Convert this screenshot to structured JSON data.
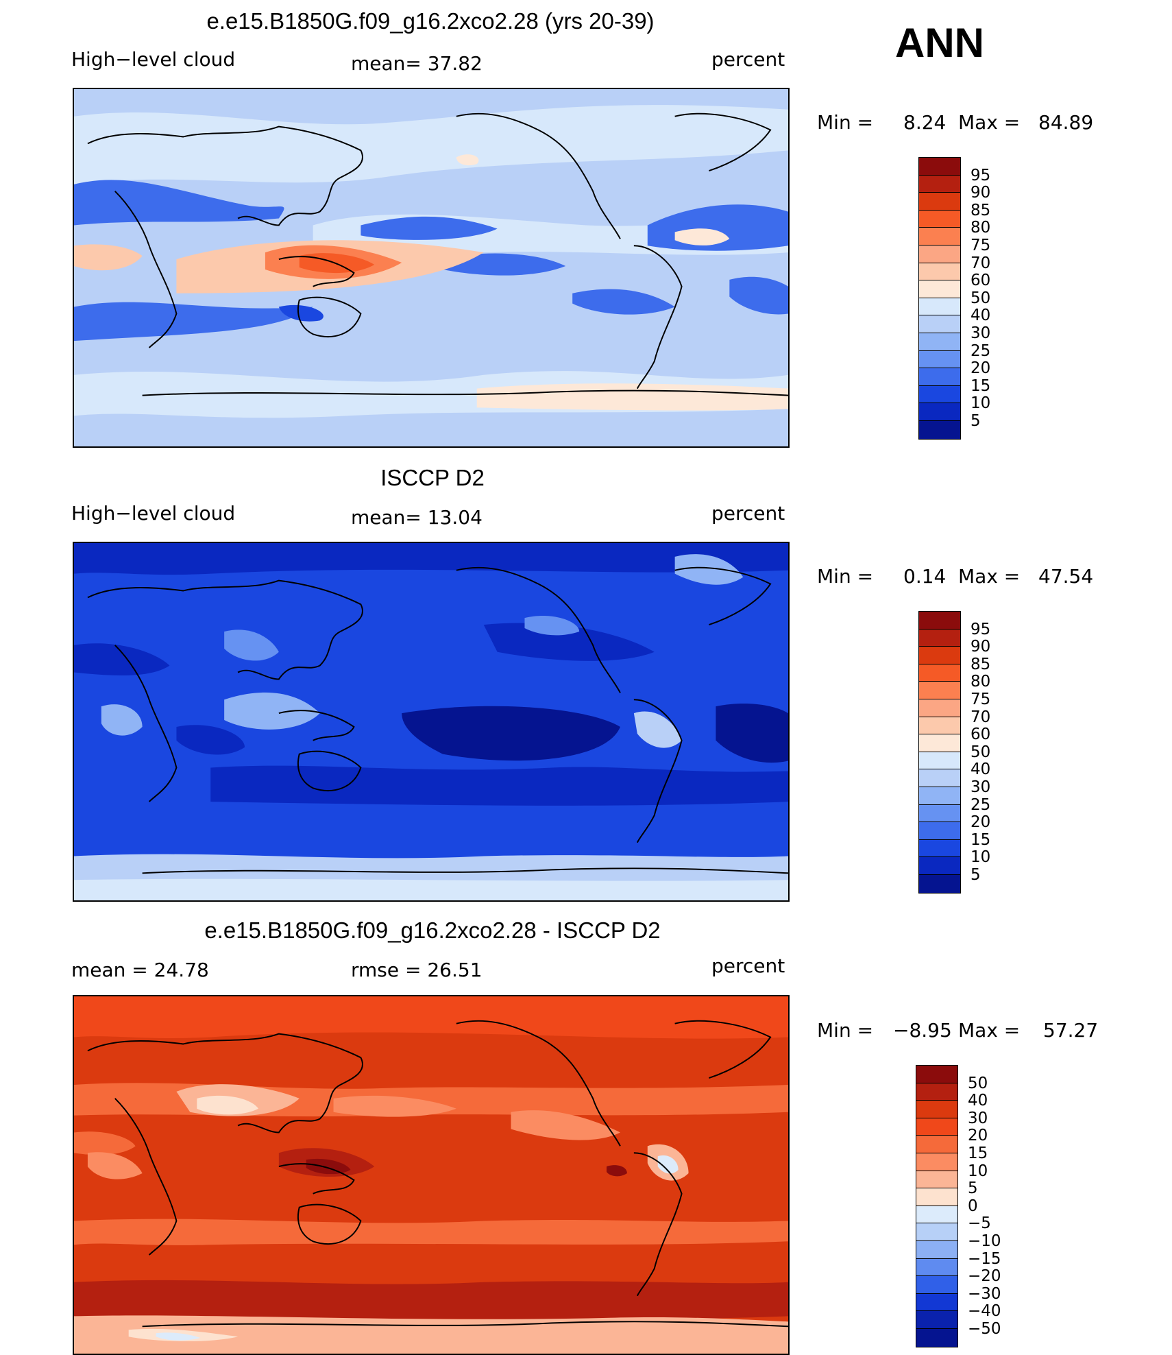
{
  "season": "ANN",
  "panels": [
    {
      "title": "e.e15.B1850G.f09_g16.2xco2.28 (yrs 20-39)",
      "left_label": "High−level cloud",
      "center_label": "mean=   37.82",
      "right_label": "percent",
      "min_label": "Min  =",
      "min_value": "8.24",
      "max_label": "Max  =",
      "max_value": "84.89",
      "field": {
        "base": "#b9d0f7",
        "mean": 37.82,
        "min": 8.24,
        "max": 84.89
      },
      "colorbar": {
        "labels": [
          "95",
          "90",
          "85",
          "80",
          "75",
          "70",
          "60",
          "50",
          "40",
          "30",
          "25",
          "20",
          "15",
          "10",
          "5"
        ],
        "colors": [
          "#8b0c0c",
          "#b42010",
          "#db3a0f",
          "#f55a26",
          "#fb8050",
          "#fba684",
          "#fcc9ac",
          "#fde8d8",
          "#d7e8fb",
          "#b9d0f7",
          "#90b4f5",
          "#6692f2",
          "#3d6cec",
          "#1a47e0",
          "#0a28c0",
          "#051490"
        ]
      }
    },
    {
      "title": "ISCCP D2",
      "left_label": "High−level cloud",
      "center_label": "mean=   13.04",
      "right_label": "percent",
      "min_label": "Min  =",
      "min_value": "0.14",
      "max_label": "Max  =",
      "max_value": "47.54",
      "field": {
        "base": "#1a47e0",
        "mean": 13.04,
        "min": 0.14,
        "max": 47.54
      },
      "colorbar": {
        "labels": [
          "95",
          "90",
          "85",
          "80",
          "75",
          "70",
          "60",
          "50",
          "40",
          "30",
          "25",
          "20",
          "15",
          "10",
          "5"
        ],
        "colors": [
          "#8b0c0c",
          "#b42010",
          "#db3a0f",
          "#f55a26",
          "#fb8050",
          "#fba684",
          "#fcc9ac",
          "#fde8d8",
          "#d7e8fb",
          "#b9d0f7",
          "#90b4f5",
          "#6692f2",
          "#3d6cec",
          "#1a47e0",
          "#0a28c0",
          "#051490"
        ]
      }
    },
    {
      "title": "e.e15.B1850G.f09_g16.2xco2.28 - ISCCP D2",
      "left_label": "mean  =    24.78",
      "center_label": "rmse  =    26.51",
      "right_label": "percent",
      "min_label": "Min  =",
      "min_value": "−8.95",
      "max_label": "Max  =",
      "max_value": "57.27",
      "field": {
        "base": "#db3a0f",
        "mean": 24.78,
        "min": -8.95,
        "max": 57.27
      },
      "colorbar": {
        "labels": [
          "50",
          "40",
          "30",
          "20",
          "15",
          "10",
          "5",
          "0",
          "−5",
          "−10",
          "−15",
          "−20",
          "−30",
          "−40",
          "−50"
        ],
        "colors": [
          "#8b0c0c",
          "#b42010",
          "#db3a0f",
          "#f0481a",
          "#f56a3a",
          "#fb8c62",
          "#fbb596",
          "#fde2cf",
          "#dcebfb",
          "#b7d0f7",
          "#8cb0f4",
          "#5f8bf0",
          "#3060e8",
          "#1238d4",
          "#0a22ad",
          "#051490"
        ]
      }
    }
  ]
}
